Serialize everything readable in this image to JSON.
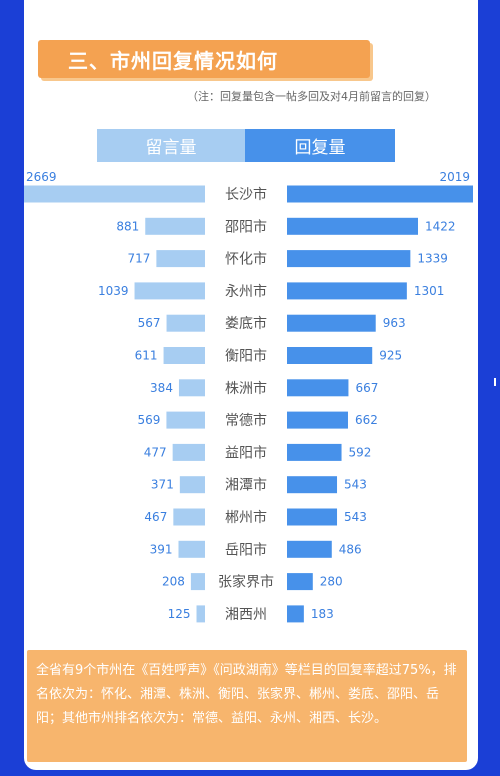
{
  "header": {
    "title": "三、市州回复情况如何"
  },
  "note": "（注：回复量包含一帖多回及对4月前留言的回复）",
  "legend": {
    "left": "留言量",
    "right": "回复量"
  },
  "colors": {
    "left_bar": "#a7cdf2",
    "right_bar": "#4791ea",
    "value_text": "#3a7fdf",
    "city_text": "#555555"
  },
  "chart_data": {
    "type": "bar",
    "orientation": "horizontal-diverging",
    "categories": [
      "长沙市",
      "邵阳市",
      "怀化市",
      "永州市",
      "娄底市",
      "衡阳市",
      "株洲市",
      "常德市",
      "益阳市",
      "湘潭市",
      "郴州市",
      "岳阳市",
      "张家界市",
      "湘西州"
    ],
    "series": [
      {
        "name": "留言量",
        "values": [
          2669,
          881,
          717,
          1039,
          567,
          611,
          384,
          569,
          477,
          371,
          467,
          391,
          208,
          125
        ]
      },
      {
        "name": "回复量",
        "values": [
          2019,
          1422,
          1339,
          1301,
          963,
          925,
          667,
          662,
          592,
          543,
          543,
          486,
          280,
          183
        ]
      }
    ]
  },
  "summary": "全省有9个市州在《百姓呼声》《问政湖南》等栏目的回复率超过75%，排名依次为：怀化、湘潭、株洲、衡阳、张家界、郴州、娄底、邵阳、岳阳；其他市州排名依次为：常德、益阳、永州、湘西、长沙。"
}
